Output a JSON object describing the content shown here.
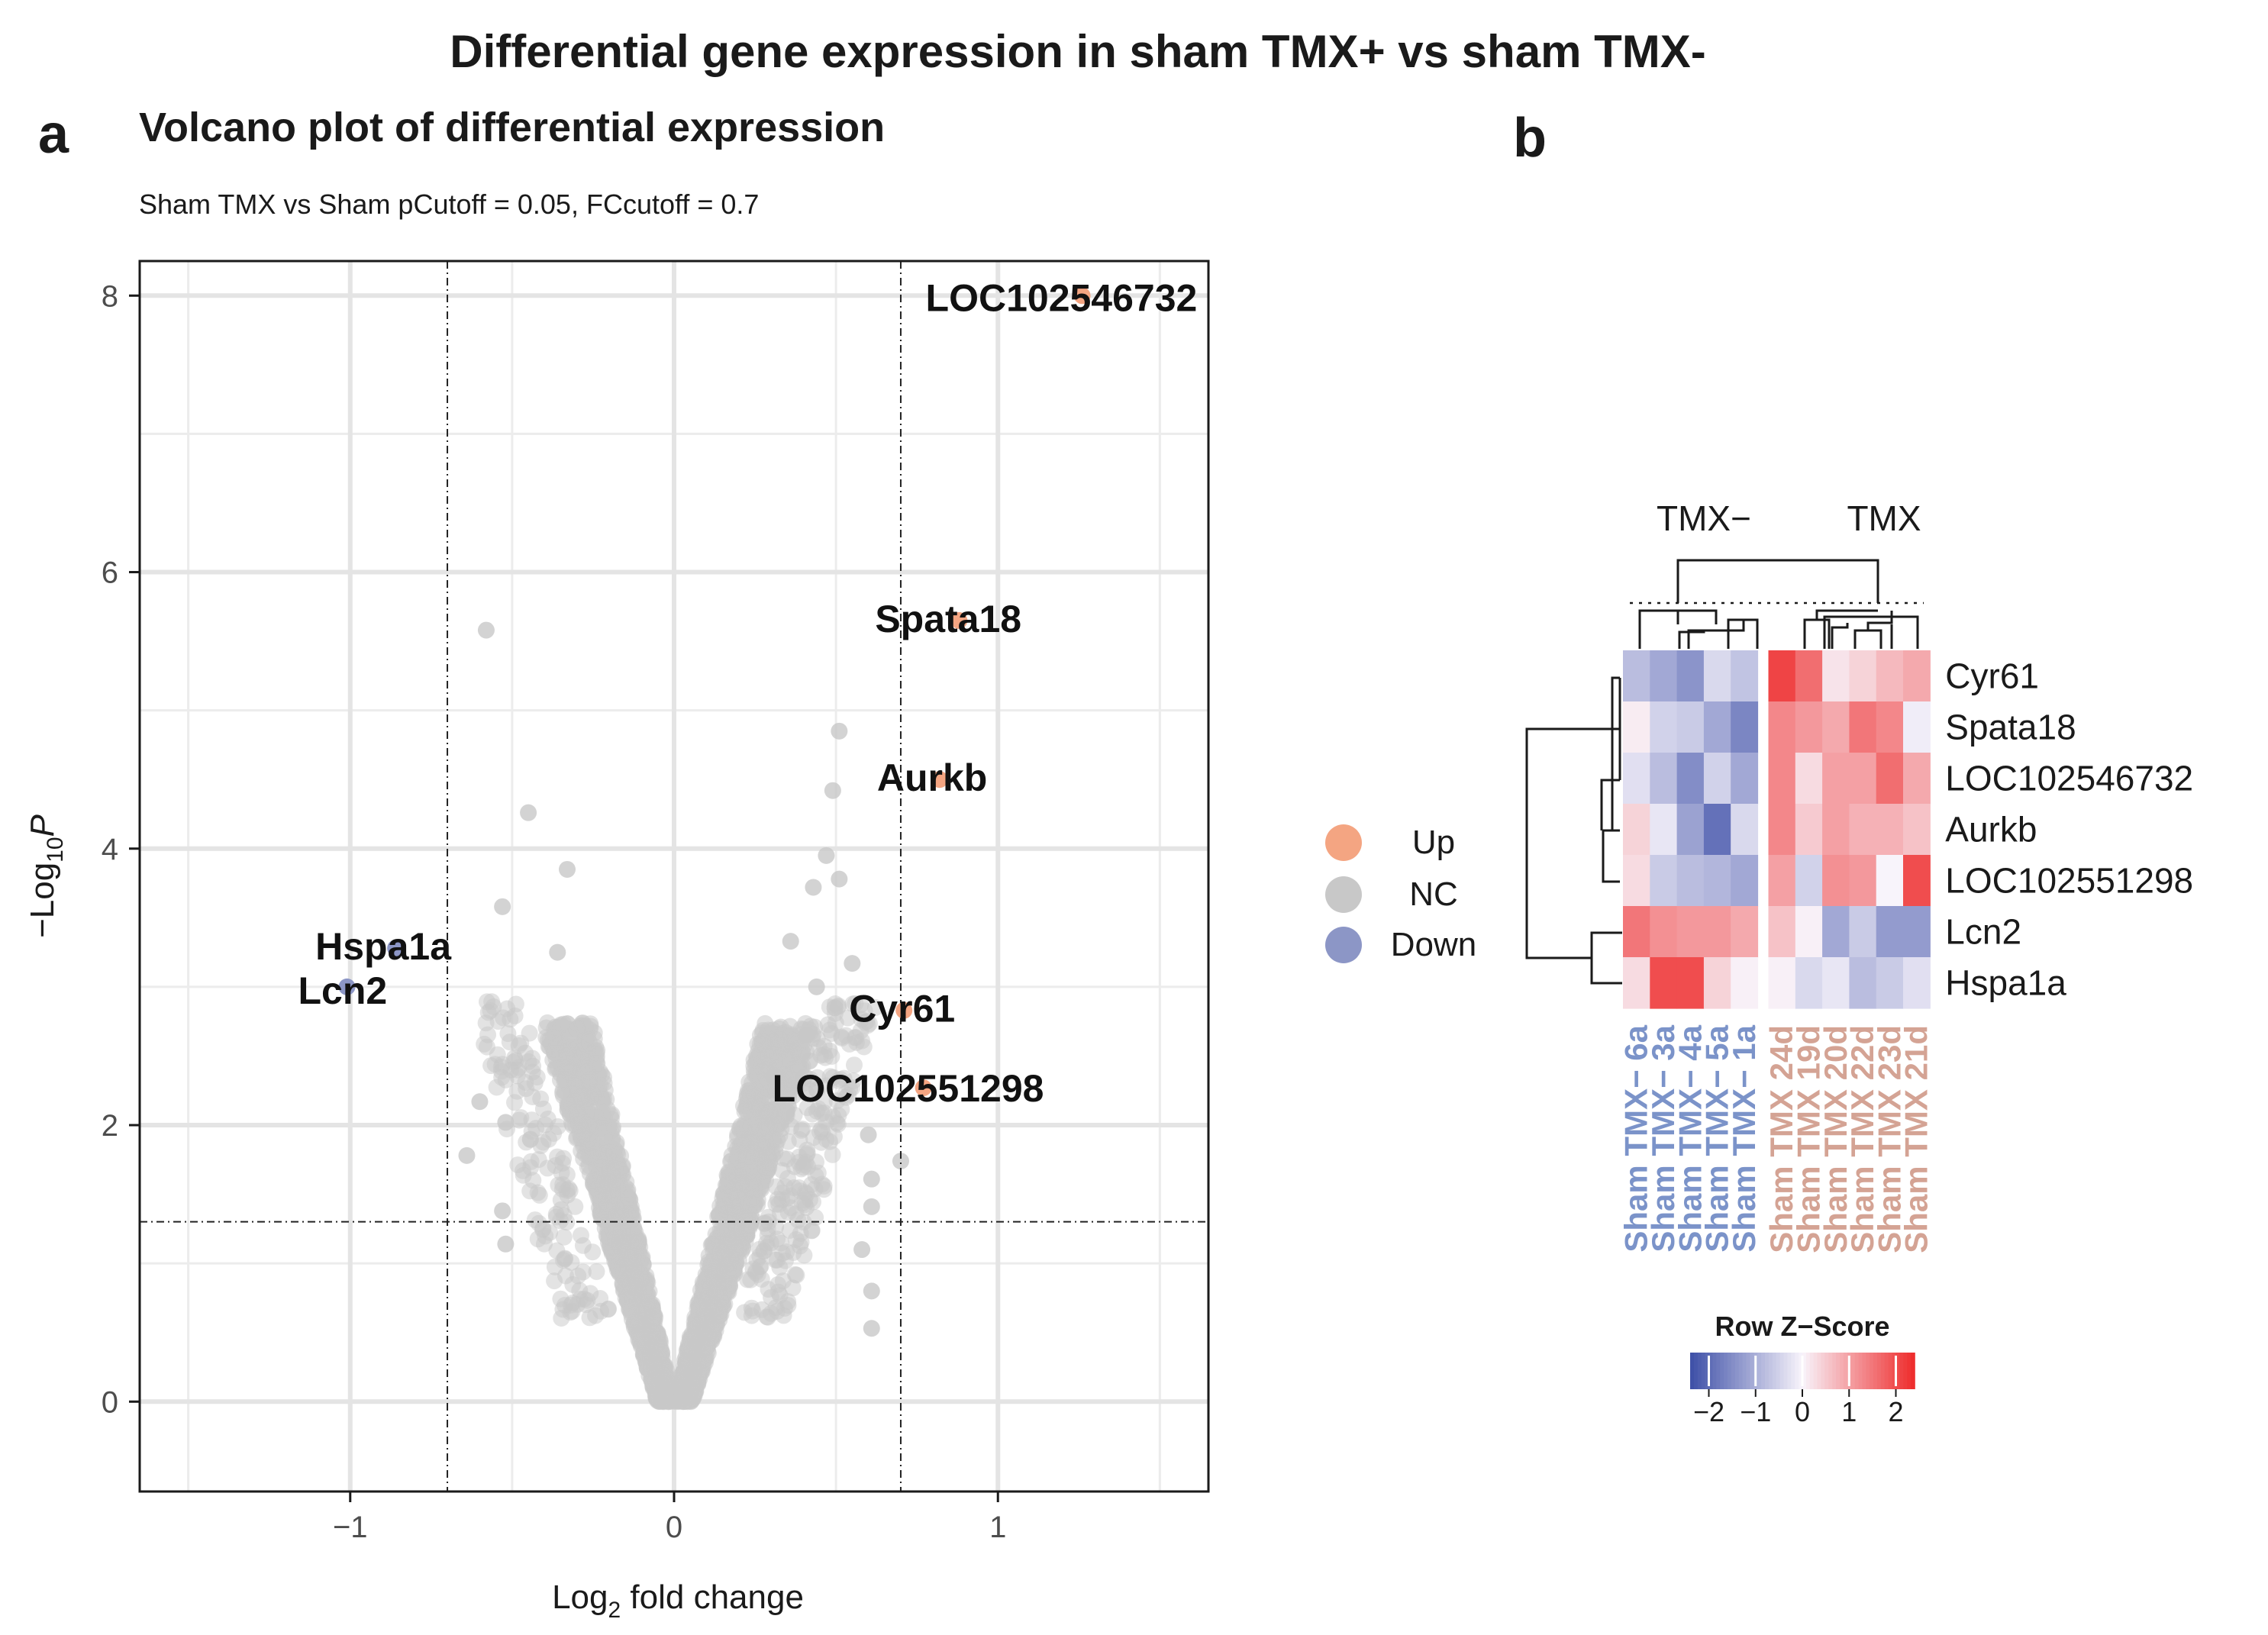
{
  "figure": {
    "title": "Differential gene expression in sham TMX+ vs sham TMX-",
    "panel_a_letter": "a",
    "panel_b_letter": "b"
  },
  "chart_data": [
    {
      "type": "scatter",
      "panel": "a",
      "title": "Volcano plot of differential expression",
      "subtitle": "Sham TMX vs Sham pCutoff = 0.05, FCcutoff = 0.7",
      "xlabel_main": "Log",
      "xlabel_sub": "2",
      "xlabel_rest": " fold change",
      "ylabel_main": "−Log",
      "ylabel_sub": "10",
      "ylabel_italic": "P",
      "xlim": [
        -1.65,
        1.65
      ],
      "ylim": [
        -0.65,
        8.25
      ],
      "x_ticks": [
        -1,
        0,
        1
      ],
      "x_tick_labels": [
        "−1",
        "0",
        "1"
      ],
      "y_ticks": [
        0,
        2,
        4,
        6,
        8
      ],
      "y_tick_labels": [
        "0",
        "2",
        "4",
        "6",
        "8"
      ],
      "fc_cutoff": 0.7,
      "p_cutoff_log10": 1.301,
      "grid": true,
      "colors": {
        "Up": "#f4a582",
        "NC": "#c8c8c8",
        "Down": "#8c96c6"
      },
      "legend": {
        "position": "right",
        "entries": [
          "Up",
          "NC",
          "Down"
        ]
      },
      "labeled_genes": [
        {
          "gene": "LOC102546732",
          "x": 1.26,
          "y": 8.0,
          "group": "Up"
        },
        {
          "gene": "Spata18",
          "x": 0.88,
          "y": 5.65,
          "group": "Up"
        },
        {
          "gene": "Aurkb",
          "x": 0.82,
          "y": 4.5,
          "group": "Up"
        },
        {
          "gene": "Cyr61",
          "x": 0.71,
          "y": 2.83,
          "group": "Up"
        },
        {
          "gene": "LOC102551298",
          "x": 0.77,
          "y": 2.27,
          "group": "Up"
        },
        {
          "gene": "Hspa1a",
          "x": -0.86,
          "y": 3.28,
          "group": "Down"
        },
        {
          "gene": "Lcn2",
          "x": -1.01,
          "y": 3.0,
          "group": "Down"
        }
      ],
      "outlier_points": [
        {
          "x": -0.58,
          "y": 5.58
        },
        {
          "x": -0.45,
          "y": 4.26
        },
        {
          "x": -0.53,
          "y": 3.58
        },
        {
          "x": -0.64,
          "y": 1.78
        },
        {
          "x": -0.6,
          "y": 2.17
        },
        {
          "x": -0.52,
          "y": 2.02
        },
        {
          "x": -0.53,
          "y": 1.38
        },
        {
          "x": -0.52,
          "y": 1.14
        },
        {
          "x": -0.36,
          "y": 3.25
        },
        {
          "x": -0.33,
          "y": 3.85
        },
        {
          "x": 0.51,
          "y": 4.85
        },
        {
          "x": 0.49,
          "y": 4.42
        },
        {
          "x": 0.47,
          "y": 3.95
        },
        {
          "x": 0.51,
          "y": 3.78
        },
        {
          "x": 0.43,
          "y": 3.72
        },
        {
          "x": 0.36,
          "y": 3.33
        },
        {
          "x": 0.44,
          "y": 3.0
        },
        {
          "x": 0.55,
          "y": 3.17
        },
        {
          "x": 0.6,
          "y": 1.93
        },
        {
          "x": 0.7,
          "y": 1.74
        },
        {
          "x": 0.61,
          "y": 1.61
        },
        {
          "x": 0.61,
          "y": 1.41
        },
        {
          "x": 0.61,
          "y": 0.8
        },
        {
          "x": 0.61,
          "y": 0.53
        },
        {
          "x": 0.58,
          "y": 1.1
        },
        {
          "x": 0.31,
          "y": 2.35
        },
        {
          "x": 0.41,
          "y": 2.65
        }
      ],
      "cloud_description_note": "Background NC genes form a V-shaped cloud around log2FC 0 up to ~2.8"
    },
    {
      "type": "heatmap",
      "panel": "b",
      "column_groups": [
        {
          "name": "TMX−",
          "color": "#7b93c9"
        },
        {
          "name": "TMX",
          "color": "#d4a394"
        }
      ],
      "columns": [
        "Sham TMX− 6a",
        "Sham TMX− 3a",
        "Sham TMX− 4a",
        "Sham TMX− 5a",
        "Sham TMX− 1a",
        "Sham TMX 24d",
        "Sham TMX 19d",
        "Sham TMX 20d",
        "Sham TMX 22d",
        "Sham TMX 23d",
        "Sham TMX 21d"
      ],
      "column_group_index": [
        0,
        0,
        0,
        0,
        0,
        1,
        1,
        1,
        1,
        1,
        1
      ],
      "rows": [
        "Cyr61",
        "Spata18",
        "LOC102546732",
        "Aurkb",
        "LOC102551298",
        "Lcn2",
        "Hspa1a"
      ],
      "values": [
        [
          -0.8,
          -1.1,
          -1.4,
          -0.4,
          -0.7,
          2.1,
          1.6,
          0.2,
          0.4,
          0.7,
          0.9
        ],
        [
          0.1,
          -0.5,
          -0.6,
          -1.1,
          -1.6,
          1.3,
          1.1,
          0.9,
          1.5,
          1.3,
          -0.1
        ],
        [
          -0.3,
          -0.8,
          -1.5,
          -0.5,
          -1.1,
          1.3,
          0.3,
          1.0,
          1.0,
          1.6,
          0.9
        ],
        [
          0.4,
          -0.2,
          -1.2,
          -1.9,
          -0.4,
          1.3,
          0.5,
          1.0,
          0.8,
          0.8,
          0.6
        ],
        [
          0.3,
          -0.6,
          -0.8,
          -0.9,
          -1.1,
          1.0,
          -0.5,
          1.2,
          1.1,
          0.0,
          2.0
        ],
        [
          1.5,
          1.2,
          1.1,
          1.1,
          0.9,
          0.6,
          0.05,
          -1.1,
          -0.6,
          -1.3,
          -1.3
        ],
        [
          0.3,
          2.0,
          2.0,
          0.4,
          0.05,
          0.05,
          -0.4,
          -0.2,
          -0.8,
          -0.6,
          -0.3
        ]
      ],
      "color_scale": {
        "min": -2.4,
        "max": 2.4,
        "low": "#3d4fa7",
        "mid": "#f8f4fb",
        "high": "#ee2b2b"
      },
      "colorbar_title": "Row Z−Score",
      "colorbar_tick_values": [
        -2,
        -1,
        0,
        1,
        2
      ],
      "colorbar_tick_labels": [
        "−2",
        "−1",
        "0",
        "1",
        "2"
      ]
    }
  ]
}
